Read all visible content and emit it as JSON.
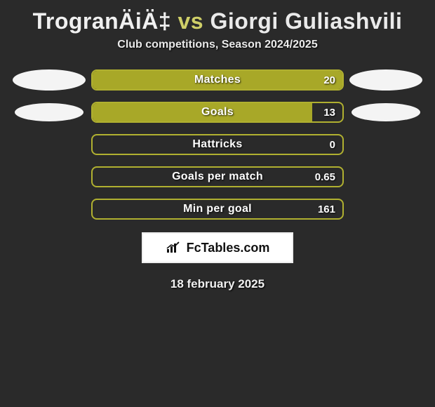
{
  "header": {
    "player1": "TrogranÄiÄ‡",
    "vs": "vs",
    "player2": "Giorgi Guliashvili",
    "title_color_p1": "#f0f0f0",
    "title_color_vs": "#cbcb5a",
    "title_color_p2": "#eaeaea"
  },
  "subtitle": "Club competitions, Season 2024/2025",
  "bars": {
    "border_color": "#b0b030",
    "fill_color": "#a8a828",
    "empty_color": "transparent",
    "rows": [
      {
        "label": "Matches",
        "value": "20",
        "fill_percent": 100,
        "left_ellipse": "lg",
        "right_ellipse": "lg"
      },
      {
        "label": "Goals",
        "value": "13",
        "fill_percent": 88,
        "left_ellipse": "md",
        "right_ellipse": "md"
      },
      {
        "label": "Hattricks",
        "value": "0",
        "fill_percent": 0,
        "left_ellipse": "",
        "right_ellipse": ""
      },
      {
        "label": "Goals per match",
        "value": "0.65",
        "fill_percent": 0,
        "left_ellipse": "",
        "right_ellipse": ""
      },
      {
        "label": "Min per goal",
        "value": "161",
        "fill_percent": 0,
        "left_ellipse": "",
        "right_ellipse": ""
      }
    ]
  },
  "badge": {
    "text": "FcTables.com"
  },
  "date": "18 february 2025",
  "colors": {
    "background": "#2a2a2a",
    "text_light": "#f0f0f0"
  }
}
